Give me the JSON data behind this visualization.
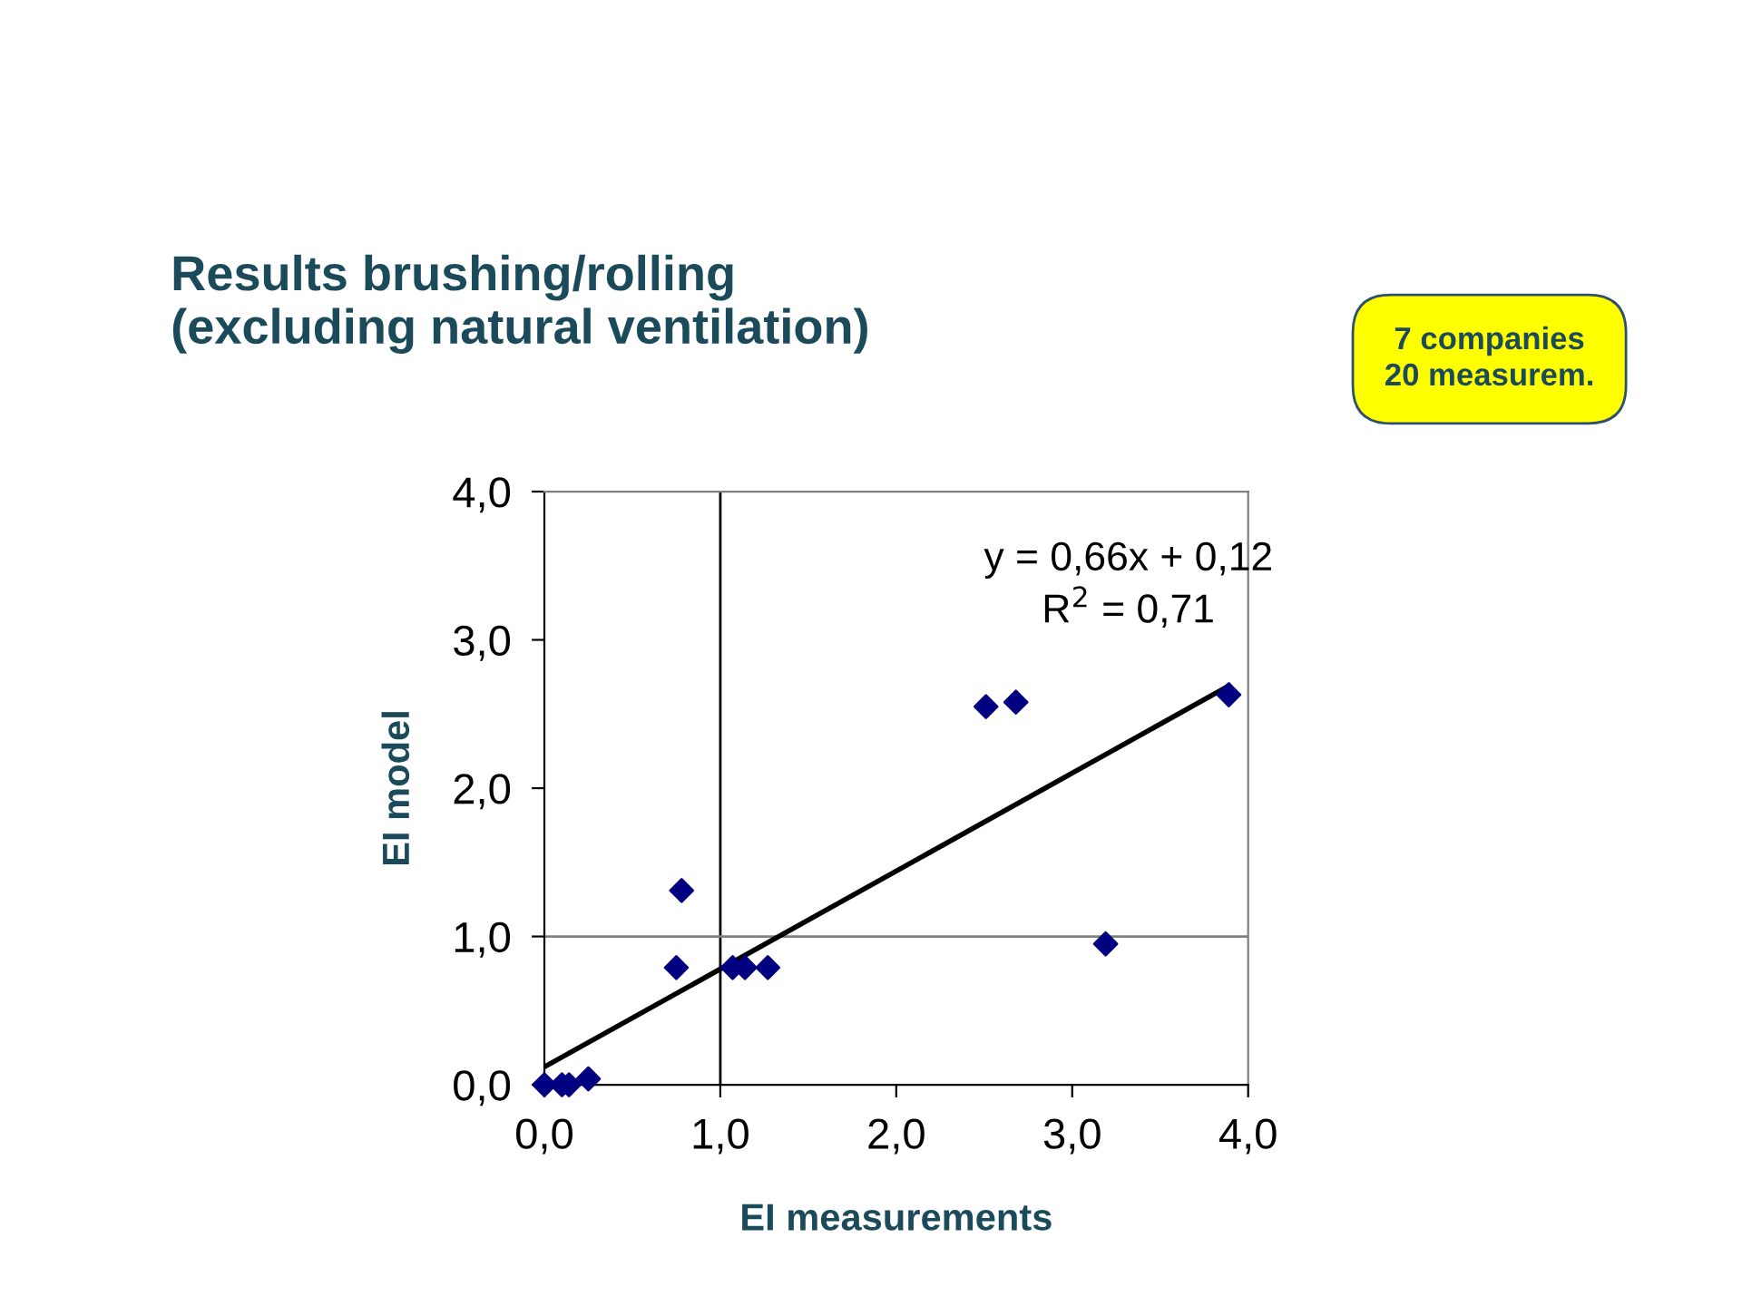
{
  "chart_data": {
    "type": "scatter",
    "title": "Results brushing/rolling\n(excluding natural ventilation)",
    "xlabel": "EI measurements",
    "ylabel": "EI model",
    "annotations": [
      "y = 0,66x + 0,12",
      "R$^{2}$ = 0,71",
      "7 companies\n20 measurem."
    ],
    "series": [
      {
        "color": "#000080",
        "marker": "diamond",
        "x": [
          0.0,
          0.1,
          0.14,
          0.25,
          0.75,
          0.78,
          1.07,
          1.14,
          1.27,
          2.51,
          2.68,
          3.19,
          3.89
        ],
        "values": [
          0.0,
          0.0,
          0.0,
          0.04,
          0.79,
          1.31,
          0.79,
          0.79,
          0.79,
          2.55,
          2.58,
          0.95,
          2.63
        ]
      },
      {
        "type": "line",
        "color": "#000000",
        "marker": "none",
        "x": [
          0.0,
          3.89
        ],
        "values": [
          0.12,
          2.69
        ]
      }
    ],
    "ref_lines": [
      {
        "axis": "x",
        "value": 1.0,
        "color": "#000000"
      },
      {
        "axis": "y",
        "value": 1.0,
        "color": "#808080"
      }
    ],
    "xlim": [
      0,
      4
    ],
    "ylim": [
      0,
      4
    ],
    "xticks": [
      {
        "value": 0,
        "label": "0,0"
      },
      {
        "value": 1,
        "label": "1,0"
      },
      {
        "value": 2,
        "label": "2,0"
      },
      {
        "value": 3,
        "label": "3,0"
      },
      {
        "value": 4,
        "label": "4,0"
      }
    ],
    "yticks": [
      {
        "value": 0,
        "label": "0,0"
      },
      {
        "value": 1,
        "label": "1,0"
      },
      {
        "value": 2,
        "label": "2,0"
      },
      {
        "value": 3,
        "label": "3,0"
      },
      {
        "value": 4,
        "label": "4,0"
      }
    ],
    "grid": false,
    "legend": false
  }
}
